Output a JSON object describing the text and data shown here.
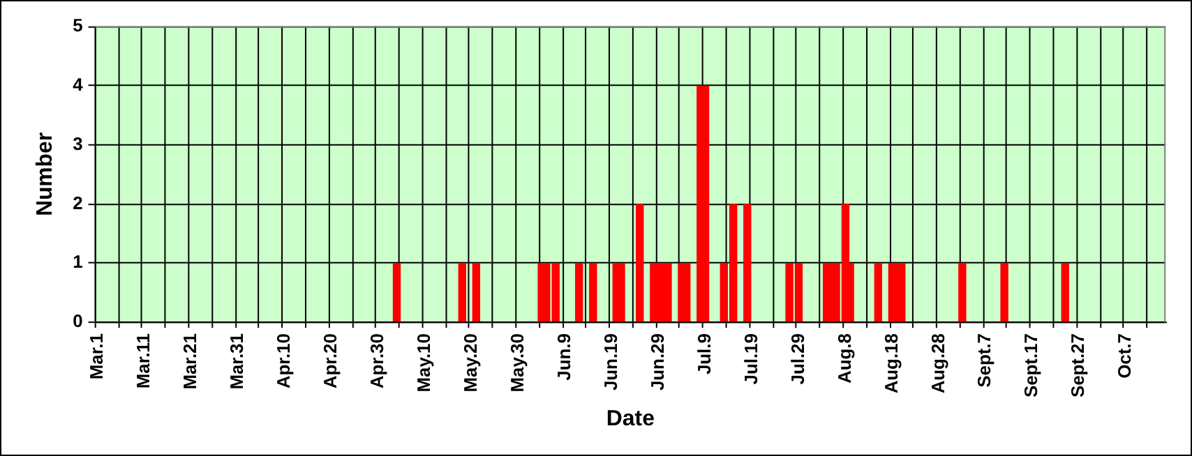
{
  "chart_data": {
    "type": "bar",
    "xlabel": "Date",
    "ylabel": "Number",
    "categories": [
      "Mar.1",
      null,
      null,
      null,
      null,
      null,
      null,
      null,
      null,
      null,
      "Mar.11",
      null,
      null,
      null,
      null,
      null,
      null,
      null,
      null,
      null,
      "Mar.21",
      null,
      null,
      null,
      null,
      null,
      null,
      null,
      null,
      null,
      "Mar.31",
      null,
      null,
      null,
      null,
      null,
      null,
      null,
      null,
      null,
      "Apr.10",
      null,
      null,
      null,
      null,
      null,
      null,
      null,
      null,
      null,
      "Apr.20",
      null,
      null,
      null,
      null,
      null,
      null,
      null,
      null,
      null,
      "Apr.30",
      null,
      null,
      null,
      null,
      null,
      null,
      null,
      null,
      null,
      "May.10",
      null,
      null,
      null,
      null,
      null,
      null,
      null,
      null,
      null,
      "May.20",
      null,
      null,
      null,
      null,
      null,
      null,
      null,
      null,
      null,
      "May.30",
      null,
      null,
      null,
      null,
      null,
      null,
      null,
      null,
      null,
      "Jun.9",
      null,
      null,
      null,
      null,
      null,
      null,
      null,
      null,
      null,
      "Jun.19",
      null,
      null,
      null,
      null,
      null,
      null,
      null,
      null,
      null,
      "Jun.29",
      null,
      null,
      null,
      null,
      null,
      null,
      null,
      null,
      null,
      "Jul.9",
      null,
      null,
      null,
      null,
      null,
      null,
      null,
      null,
      null,
      "Jul.19",
      null,
      null,
      null,
      null,
      null,
      null,
      null,
      null,
      null,
      "Jul.29",
      null,
      null,
      null,
      null,
      null,
      null,
      null,
      null,
      null,
      "Aug.8",
      null,
      null,
      null,
      null,
      null,
      null,
      null,
      null,
      null,
      "Aug.18",
      null,
      null,
      null,
      null,
      null,
      null,
      null,
      null,
      null,
      "Aug.28",
      null,
      null,
      null,
      null,
      null,
      null,
      null,
      null,
      null,
      "Sept.7",
      null,
      null,
      null,
      null,
      null,
      null,
      null,
      null,
      null,
      "Sept.17",
      null,
      null,
      null,
      null,
      null,
      null,
      null,
      null,
      null,
      "Sept.27",
      null,
      null,
      null,
      null,
      null,
      null,
      null,
      null,
      null,
      "Oct.7",
      null,
      null,
      null,
      null,
      null,
      null,
      null,
      null
    ],
    "values": [
      0,
      0,
      0,
      0,
      0,
      0,
      0,
      0,
      0,
      0,
      0,
      0,
      0,
      0,
      0,
      0,
      0,
      0,
      0,
      0,
      0,
      0,
      0,
      0,
      0,
      0,
      0,
      0,
      0,
      0,
      0,
      0,
      0,
      0,
      0,
      0,
      0,
      0,
      0,
      0,
      0,
      0,
      0,
      0,
      0,
      0,
      0,
      0,
      0,
      0,
      0,
      0,
      0,
      0,
      0,
      0,
      0,
      0,
      0,
      0,
      0,
      0,
      0,
      0,
      1,
      0,
      0,
      0,
      0,
      0,
      0,
      0,
      0,
      0,
      0,
      0,
      0,
      0,
      1,
      0,
      0,
      1,
      0,
      0,
      0,
      0,
      0,
      0,
      0,
      0,
      0,
      0,
      0,
      0,
      0,
      1,
      1,
      0,
      1,
      0,
      0,
      0,
      0,
      1,
      0,
      0,
      1,
      0,
      0,
      0,
      0,
      1,
      1,
      0,
      0,
      0,
      2,
      0,
      0,
      1,
      1,
      1,
      1,
      0,
      0,
      1,
      1,
      0,
      0,
      4,
      4,
      0,
      0,
      0,
      1,
      0,
      2,
      0,
      0,
      2,
      0,
      0,
      0,
      0,
      0,
      0,
      0,
      0,
      1,
      0,
      1,
      0,
      0,
      0,
      0,
      0,
      1,
      1,
      1,
      0,
      2,
      1,
      0,
      0,
      0,
      0,
      0,
      1,
      0,
      0,
      1,
      1,
      1,
      0,
      0,
      0,
      0,
      0,
      0,
      0,
      0,
      0,
      0,
      0,
      0,
      1,
      0,
      0,
      0,
      0,
      0,
      0,
      0,
      0,
      1,
      0,
      0,
      0,
      0,
      0,
      0,
      0,
      0,
      0,
      0,
      0,
      0,
      1,
      0,
      0,
      0,
      0,
      0,
      0,
      0,
      0,
      0,
      0,
      0,
      0,
      0,
      0,
      0,
      0,
      0,
      0,
      0,
      0,
      0
    ],
    "color": "#ff0000",
    "ylim": [
      0,
      5
    ],
    "yticks": [
      0,
      1,
      2,
      3,
      4,
      5
    ],
    "grid": true,
    "legend": false
  }
}
